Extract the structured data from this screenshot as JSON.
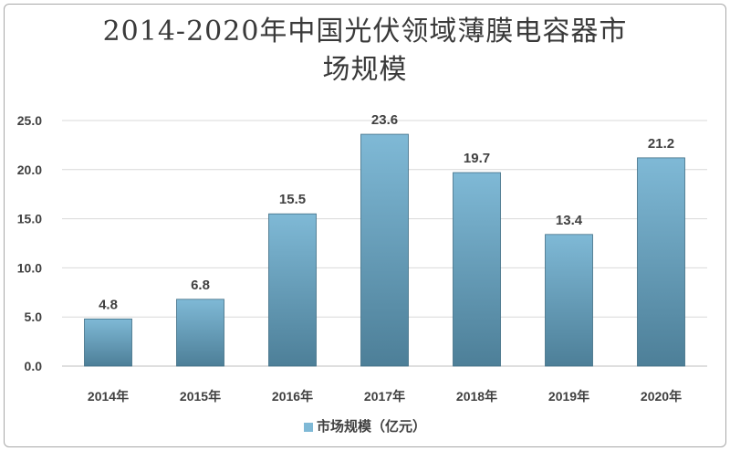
{
  "chart_data": {
    "type": "bar",
    "title_lines": [
      "2014-2020年中国光伏领域薄膜电容器市",
      "场规模"
    ],
    "categories": [
      "2014年",
      "2015年",
      "2016年",
      "2017年",
      "2018年",
      "2019年",
      "2020年"
    ],
    "series": [
      {
        "name": "市场规模（亿元）",
        "values": [
          4.8,
          6.8,
          15.5,
          23.6,
          19.7,
          13.4,
          21.2
        ]
      }
    ],
    "value_labels": [
      "4.8",
      "6.8",
      "15.5",
      "23.6",
      "19.7",
      "13.4",
      "21.2"
    ],
    "y_ticks": [
      "0.0",
      "5.0",
      "10.0",
      "15.0",
      "20.0",
      "25.0"
    ],
    "ylim": [
      0,
      25
    ],
    "grid": true,
    "legend_position": "bottom",
    "colors": {
      "bar_top": "#7fb9d6",
      "bar_bottom": "#4d7f98",
      "grid": "#d9d9d9",
      "axis": "#bfbfbf"
    }
  }
}
